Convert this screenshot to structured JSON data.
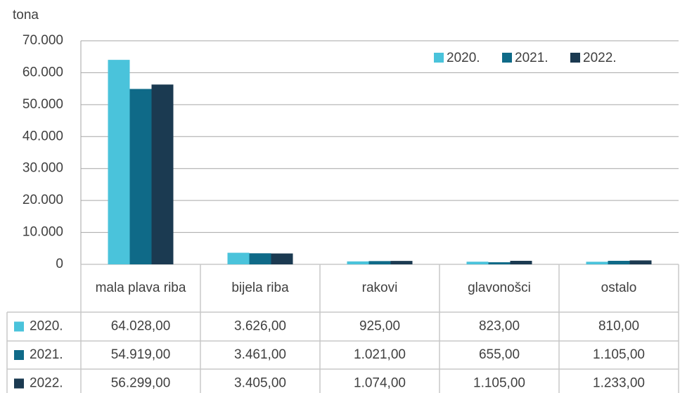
{
  "chart_data": {
    "type": "bar",
    "y_label": "tona",
    "categories": [
      "mala plava riba",
      "bijela riba",
      "rakovi",
      "glavonošci",
      "ostalo"
    ],
    "series": [
      {
        "name": "2020.",
        "color": "#4ac3db",
        "values": [
          64028,
          3626,
          925,
          823,
          810
        ],
        "value_labels": [
          "64.028,00",
          "3.626,00",
          "925,00",
          "823,00",
          "810,00"
        ]
      },
      {
        "name": "2021.",
        "color": "#0f6a88",
        "values": [
          54919,
          3461,
          1021,
          655,
          1105
        ],
        "value_labels": [
          "54.919,00",
          "3.461,00",
          "1.021,00",
          "655,00",
          "1.105,00"
        ]
      },
      {
        "name": "2022.",
        "color": "#1b3a51",
        "values": [
          56299,
          3405,
          1074,
          1105,
          1233
        ],
        "value_labels": [
          "56.299,00",
          "3.405,00",
          "1.074,00",
          "1.105,00",
          "1.233,00"
        ]
      }
    ],
    "ylim": [
      0,
      70000
    ],
    "yticks": [
      0,
      {
        "value": 10000,
        "label": "10.000"
      },
      {
        "value": 20000,
        "label": "20.000"
      },
      {
        "value": 30000,
        "label": "30.000"
      },
      {
        "value": 40000,
        "label": "40.000"
      },
      {
        "value": 50000,
        "label": "50.000"
      },
      {
        "value": 60000,
        "label": "60.000"
      },
      {
        "value": 70000,
        "label": "70.000"
      }
    ],
    "grid": true,
    "legend": "top-right"
  }
}
